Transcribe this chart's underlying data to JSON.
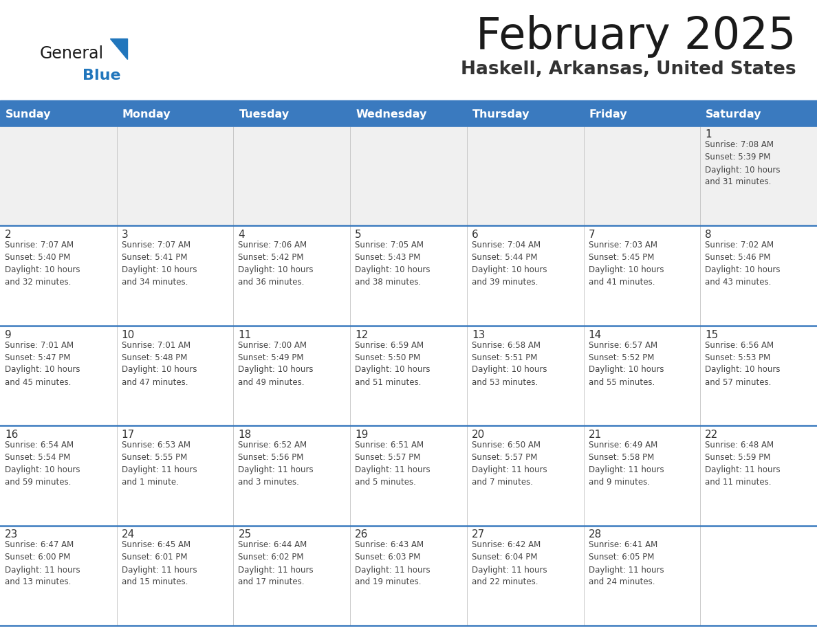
{
  "title": "February 2025",
  "subtitle": "Haskell, Arkansas, United States",
  "header_bg": "#3a7abf",
  "header_text": "#ffffff",
  "header_days": [
    "Sunday",
    "Monday",
    "Tuesday",
    "Wednesday",
    "Thursday",
    "Friday",
    "Saturday"
  ],
  "cell_bg": "#f5f5f5",
  "cell_border_color": "#3a7abf",
  "day_number_color": "#333333",
  "info_text_color": "#444444",
  "title_color": "#1a1a1a",
  "subtitle_color": "#333333",
  "logo_general_color": "#1a1a1a",
  "logo_blue_color": "#2176bc",
  "weeks": [
    [
      {
        "day": 0,
        "info": ""
      },
      {
        "day": 0,
        "info": ""
      },
      {
        "day": 0,
        "info": ""
      },
      {
        "day": 0,
        "info": ""
      },
      {
        "day": 0,
        "info": ""
      },
      {
        "day": 0,
        "info": ""
      },
      {
        "day": 1,
        "info": "Sunrise: 7:08 AM\nSunset: 5:39 PM\nDaylight: 10 hours\nand 31 minutes."
      }
    ],
    [
      {
        "day": 2,
        "info": "Sunrise: 7:07 AM\nSunset: 5:40 PM\nDaylight: 10 hours\nand 32 minutes."
      },
      {
        "day": 3,
        "info": "Sunrise: 7:07 AM\nSunset: 5:41 PM\nDaylight: 10 hours\nand 34 minutes."
      },
      {
        "day": 4,
        "info": "Sunrise: 7:06 AM\nSunset: 5:42 PM\nDaylight: 10 hours\nand 36 minutes."
      },
      {
        "day": 5,
        "info": "Sunrise: 7:05 AM\nSunset: 5:43 PM\nDaylight: 10 hours\nand 38 minutes."
      },
      {
        "day": 6,
        "info": "Sunrise: 7:04 AM\nSunset: 5:44 PM\nDaylight: 10 hours\nand 39 minutes."
      },
      {
        "day": 7,
        "info": "Sunrise: 7:03 AM\nSunset: 5:45 PM\nDaylight: 10 hours\nand 41 minutes."
      },
      {
        "day": 8,
        "info": "Sunrise: 7:02 AM\nSunset: 5:46 PM\nDaylight: 10 hours\nand 43 minutes."
      }
    ],
    [
      {
        "day": 9,
        "info": "Sunrise: 7:01 AM\nSunset: 5:47 PM\nDaylight: 10 hours\nand 45 minutes."
      },
      {
        "day": 10,
        "info": "Sunrise: 7:01 AM\nSunset: 5:48 PM\nDaylight: 10 hours\nand 47 minutes."
      },
      {
        "day": 11,
        "info": "Sunrise: 7:00 AM\nSunset: 5:49 PM\nDaylight: 10 hours\nand 49 minutes."
      },
      {
        "day": 12,
        "info": "Sunrise: 6:59 AM\nSunset: 5:50 PM\nDaylight: 10 hours\nand 51 minutes."
      },
      {
        "day": 13,
        "info": "Sunrise: 6:58 AM\nSunset: 5:51 PM\nDaylight: 10 hours\nand 53 minutes."
      },
      {
        "day": 14,
        "info": "Sunrise: 6:57 AM\nSunset: 5:52 PM\nDaylight: 10 hours\nand 55 minutes."
      },
      {
        "day": 15,
        "info": "Sunrise: 6:56 AM\nSunset: 5:53 PM\nDaylight: 10 hours\nand 57 minutes."
      }
    ],
    [
      {
        "day": 16,
        "info": "Sunrise: 6:54 AM\nSunset: 5:54 PM\nDaylight: 10 hours\nand 59 minutes."
      },
      {
        "day": 17,
        "info": "Sunrise: 6:53 AM\nSunset: 5:55 PM\nDaylight: 11 hours\nand 1 minute."
      },
      {
        "day": 18,
        "info": "Sunrise: 6:52 AM\nSunset: 5:56 PM\nDaylight: 11 hours\nand 3 minutes."
      },
      {
        "day": 19,
        "info": "Sunrise: 6:51 AM\nSunset: 5:57 PM\nDaylight: 11 hours\nand 5 minutes."
      },
      {
        "day": 20,
        "info": "Sunrise: 6:50 AM\nSunset: 5:57 PM\nDaylight: 11 hours\nand 7 minutes."
      },
      {
        "day": 21,
        "info": "Sunrise: 6:49 AM\nSunset: 5:58 PM\nDaylight: 11 hours\nand 9 minutes."
      },
      {
        "day": 22,
        "info": "Sunrise: 6:48 AM\nSunset: 5:59 PM\nDaylight: 11 hours\nand 11 minutes."
      }
    ],
    [
      {
        "day": 23,
        "info": "Sunrise: 6:47 AM\nSunset: 6:00 PM\nDaylight: 11 hours\nand 13 minutes."
      },
      {
        "day": 24,
        "info": "Sunrise: 6:45 AM\nSunset: 6:01 PM\nDaylight: 11 hours\nand 15 minutes."
      },
      {
        "day": 25,
        "info": "Sunrise: 6:44 AM\nSunset: 6:02 PM\nDaylight: 11 hours\nand 17 minutes."
      },
      {
        "day": 26,
        "info": "Sunrise: 6:43 AM\nSunset: 6:03 PM\nDaylight: 11 hours\nand 19 minutes."
      },
      {
        "day": 27,
        "info": "Sunrise: 6:42 AM\nSunset: 6:04 PM\nDaylight: 11 hours\nand 22 minutes."
      },
      {
        "day": 28,
        "info": "Sunrise: 6:41 AM\nSunset: 6:05 PM\nDaylight: 11 hours\nand 24 minutes."
      },
      {
        "day": 0,
        "info": ""
      }
    ]
  ],
  "figsize": [
    11.88,
    9.18
  ],
  "dpi": 100
}
